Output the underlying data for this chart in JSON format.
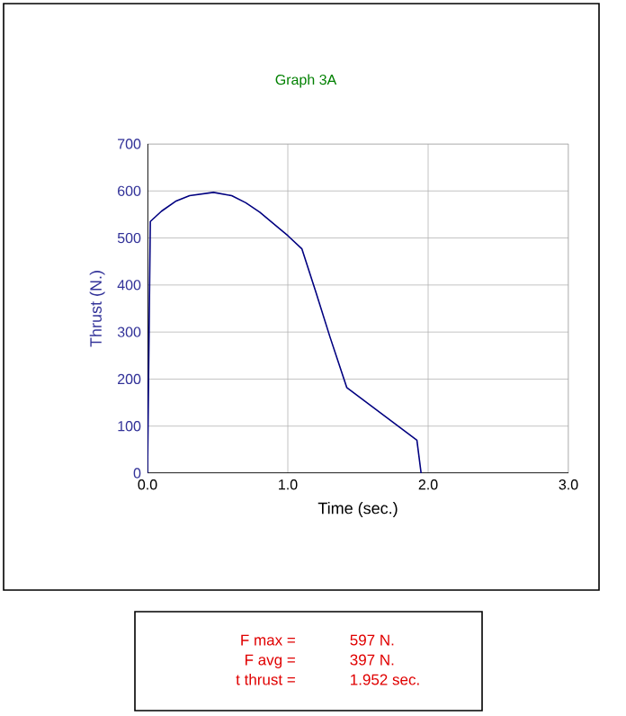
{
  "chart_data": {
    "type": "line",
    "title": "Graph 3A",
    "xlabel": "Time  (sec.)",
    "ylabel": "Thrust  (N.)",
    "x": [
      0,
      0.02,
      0.1,
      0.2,
      0.3,
      0.47,
      0.6,
      0.7,
      0.8,
      0.9,
      1.0,
      1.1,
      1.2,
      1.3,
      1.42,
      1.92,
      1.95
    ],
    "series": [
      {
        "color": "#000080",
        "values": [
          0,
          535,
          557,
          578,
          590,
          597,
          590,
          575,
          555,
          530,
          505,
          477,
          385,
          290,
          182,
          70,
          0
        ]
      }
    ],
    "xlim": [
      0,
      3
    ],
    "xticks": [
      {
        "value": 0,
        "label": "0.0"
      },
      {
        "value": 1,
        "label": "1.0"
      },
      {
        "value": 2,
        "label": "2.0"
      },
      {
        "value": 3,
        "label": "3.0"
      }
    ],
    "ylim": [
      0,
      700
    ],
    "yticks": [
      0,
      100,
      200,
      300,
      400,
      500,
      600,
      700
    ],
    "grid": true,
    "marker": "none",
    "annotations": [
      "F max =",
      "597 N.",
      "F avg =",
      "397 N.",
      "t thrust =",
      "1.952 sec."
    ]
  }
}
